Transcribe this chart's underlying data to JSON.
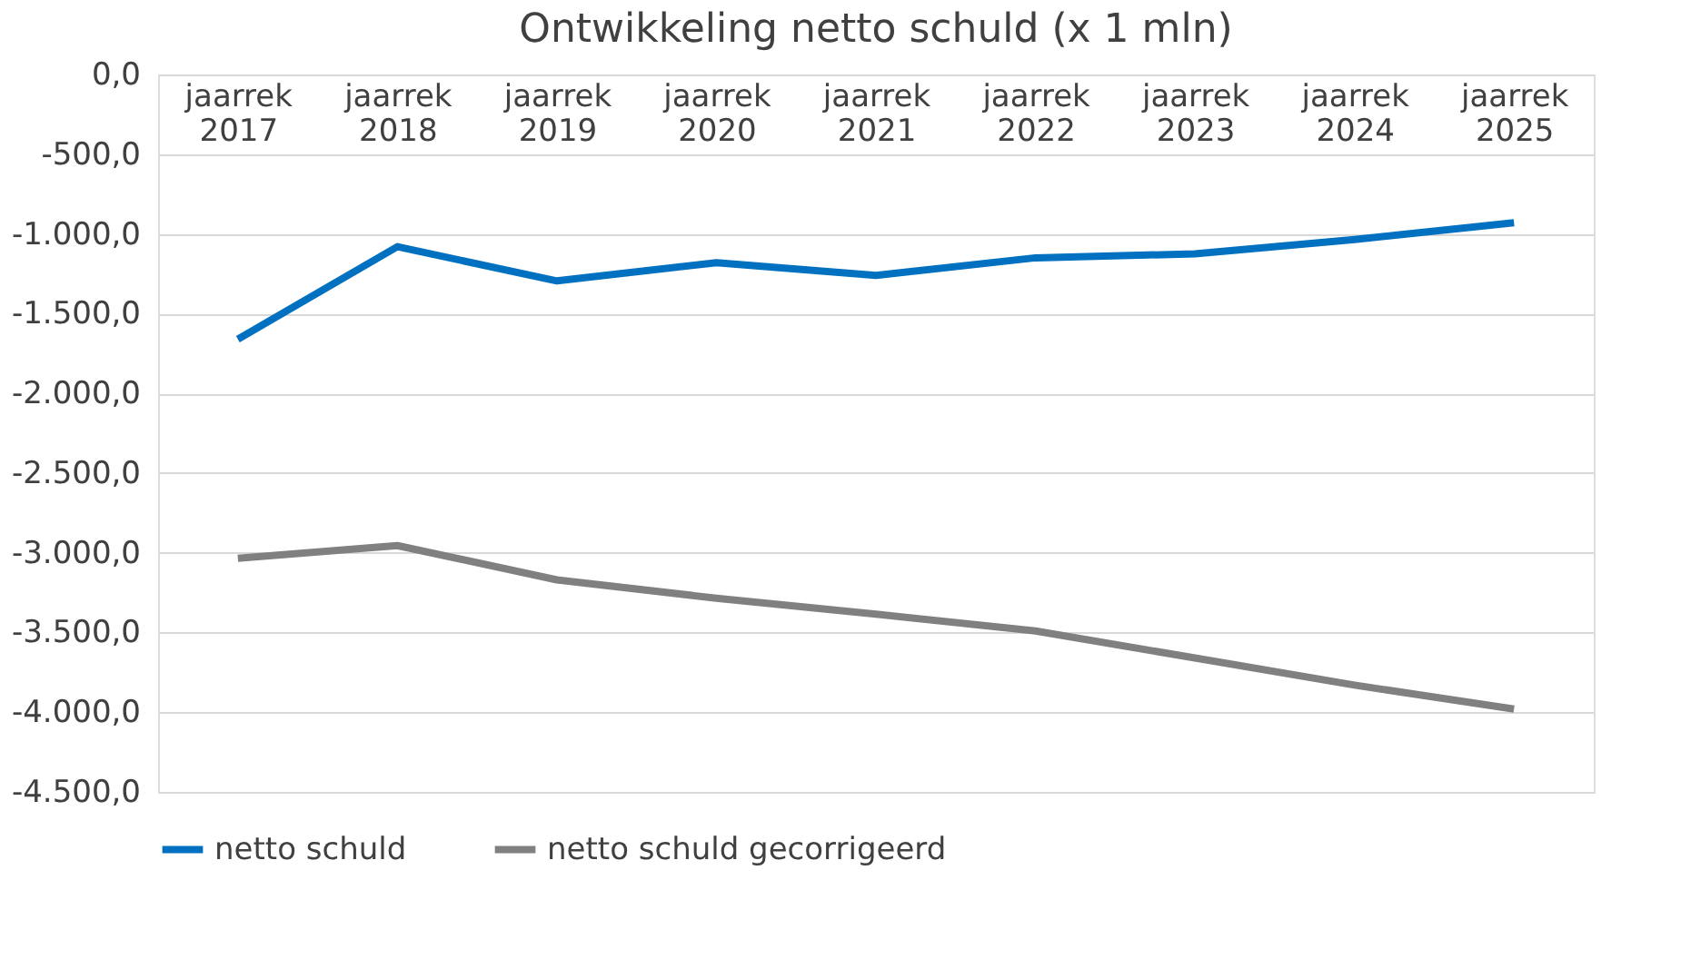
{
  "chart_data": {
    "type": "line",
    "title": "Ontwikkeling netto schuld (x 1 mln)",
    "categories": [
      "jaarrek 2017",
      "jaarrek 2018",
      "jaarrek 2019",
      "jaarrek 2020",
      "jaarrek 2021",
      "jaarrek 2022",
      "jaarrek 2023",
      "jaarrek 2024",
      "jaarrek 2025"
    ],
    "series": [
      {
        "name": "netto schuld",
        "color": "#0070c0",
        "values": [
          -1660,
          -1080,
          -1295,
          -1180,
          -1260,
          -1150,
          -1125,
          -1035,
          -930
        ]
      },
      {
        "name": "netto schuld gecorrigeerd",
        "color": "#808080",
        "values": [
          -3035,
          -2955,
          -3170,
          -3285,
          -3385,
          -3490,
          -3660,
          -3830,
          -3980
        ]
      }
    ],
    "ylim": [
      -4500,
      0
    ],
    "yticks": [
      {
        "value": 0,
        "label": "0,0"
      },
      {
        "value": -500,
        "label": "-500,0"
      },
      {
        "value": -1000,
        "label": "-1.000,0"
      },
      {
        "value": -1500,
        "label": "-1.500,0"
      },
      {
        "value": -2000,
        "label": "-2.000,0"
      },
      {
        "value": -2500,
        "label": "-2.500,0"
      },
      {
        "value": -3000,
        "label": "-3.000,0"
      },
      {
        "value": -3500,
        "label": "-3.500,0"
      },
      {
        "value": -4000,
        "label": "-4.000,0"
      },
      {
        "value": -4500,
        "label": "-4.500,0"
      }
    ],
    "grid": "y",
    "legend": "bottom",
    "marker": "none",
    "line_style": "solid"
  }
}
